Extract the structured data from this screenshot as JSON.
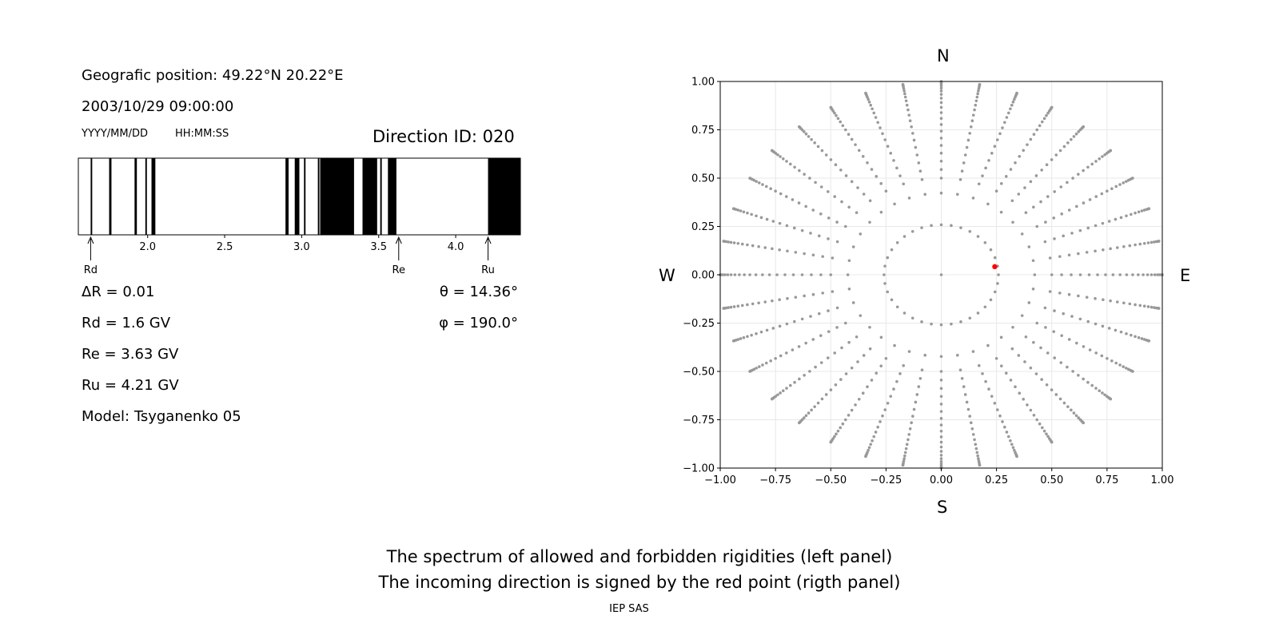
{
  "header": {
    "geo_position": "Geografic position: 49.22°N 20.22°E",
    "datetime": "2003/10/29 09:00:00",
    "date_format": "YYYY/MM/DD",
    "time_format": "HH:MM:SS",
    "direction_id": "Direction ID: 020"
  },
  "left_info": {
    "delta_r": "ΔR = 0.01",
    "rd": "Rd = 1.6 GV",
    "re": "Re = 3.63 GV",
    "ru": "Ru = 4.21 GV",
    "model": "Model: Tsyganenko 05"
  },
  "right_info": {
    "theta": "θ = 14.36°",
    "phi": "φ = 190.0°"
  },
  "compass": {
    "north": "N",
    "south": "S",
    "west": "W",
    "east": "E"
  },
  "caption": {
    "line1": "The spectrum of allowed and forbidden rigidities (left panel)",
    "line2": "The incoming direction is signed by the red point (rigth panel)",
    "credit": "IEP SAS"
  },
  "chart_data": [
    {
      "type": "bar",
      "name": "rigidity-spectrum",
      "xlim": [
        1.55,
        4.42
      ],
      "x_ticks": [
        2.0,
        2.5,
        3.0,
        3.5,
        4.0
      ],
      "x_tick_labels": [
        "2.0",
        "2.5",
        "3.0",
        "3.5",
        "4.0"
      ],
      "forbidden_bands": [
        [
          1.63,
          1.64
        ],
        [
          1.75,
          1.765
        ],
        [
          1.915,
          1.93
        ],
        [
          1.985,
          1.995
        ],
        [
          2.025,
          2.05
        ],
        [
          2.895,
          2.915
        ],
        [
          2.955,
          2.985
        ],
        [
          3.015,
          3.025
        ],
        [
          3.105,
          3.115
        ],
        [
          3.12,
          3.34
        ],
        [
          3.395,
          3.49
        ],
        [
          3.51,
          3.52
        ],
        [
          3.56,
          3.615
        ],
        [
          4.21,
          4.42
        ]
      ],
      "markers": [
        {
          "label": "Rd",
          "x": 1.63
        },
        {
          "label": "Re",
          "x": 3.63
        },
        {
          "label": "Ru",
          "x": 4.21
        }
      ],
      "bar_color": "#000000"
    },
    {
      "type": "scatter",
      "name": "direction-map",
      "xlim": [
        -1.0,
        1.0
      ],
      "ylim": [
        -1.0,
        1.0
      ],
      "x_ticks": [
        -1.0,
        -0.75,
        -0.5,
        -0.25,
        0.0,
        0.25,
        0.5,
        0.75,
        1.0
      ],
      "x_tick_labels": [
        "−1.00",
        "−0.75",
        "−0.50",
        "−0.25",
        "0.00",
        "0.25",
        "0.50",
        "0.75",
        "1.00"
      ],
      "y_ticks": [
        1.0,
        0.75,
        0.5,
        0.25,
        0.0,
        -0.25,
        -0.5,
        -0.75,
        -1.0
      ],
      "y_tick_labels": [
        "1.00",
        "0.75",
        "0.50",
        "0.25",
        "0.00",
        "−0.25",
        "−0.50",
        "−0.75",
        "−1.00"
      ],
      "grid": true,
      "grid_pattern": {
        "zenith_rings_deg": [
          15,
          25
        ],
        "outer_zenith_deg_min": 30,
        "outer_zenith_deg_max": 90,
        "outer_zenith_step_deg": 3,
        "azimuth_step_deg": 10,
        "point_color": "#999999"
      },
      "highlight": {
        "x": 0.242,
        "y": 0.042,
        "color": "#ff0000"
      }
    }
  ]
}
